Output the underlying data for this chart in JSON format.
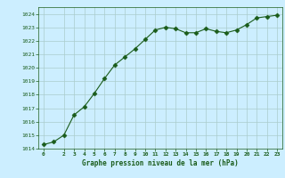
{
  "x": [
    0,
    1,
    2,
    3,
    4,
    5,
    6,
    7,
    8,
    9,
    10,
    11,
    12,
    13,
    14,
    15,
    16,
    17,
    18,
    19,
    20,
    21,
    22,
    23
  ],
  "y": [
    1014.3,
    1014.5,
    1015.0,
    1016.5,
    1017.1,
    1018.1,
    1019.2,
    1020.2,
    1020.8,
    1021.4,
    1022.1,
    1022.8,
    1023.0,
    1022.9,
    1022.6,
    1022.6,
    1022.9,
    1022.7,
    1022.6,
    1022.8,
    1023.2,
    1023.7,
    1023.8,
    1023.9
  ],
  "ylim": [
    1014,
    1024.5
  ],
  "yticks": [
    1014,
    1015,
    1016,
    1017,
    1018,
    1019,
    1020,
    1021,
    1022,
    1023,
    1024
  ],
  "xticks": [
    0,
    2,
    3,
    4,
    5,
    6,
    7,
    8,
    9,
    10,
    11,
    12,
    13,
    14,
    15,
    16,
    17,
    18,
    19,
    20,
    21,
    22,
    23
  ],
  "xlabel": "Graphe pression niveau de la mer (hPa)",
  "line_color": "#1a5c1a",
  "marker": "D",
  "marker_size": 2.5,
  "bg_color": "#cceeff",
  "grid_color": "#aacccc",
  "text_color": "#1a5c1a",
  "figsize": [
    3.2,
    2.0
  ],
  "dpi": 100
}
